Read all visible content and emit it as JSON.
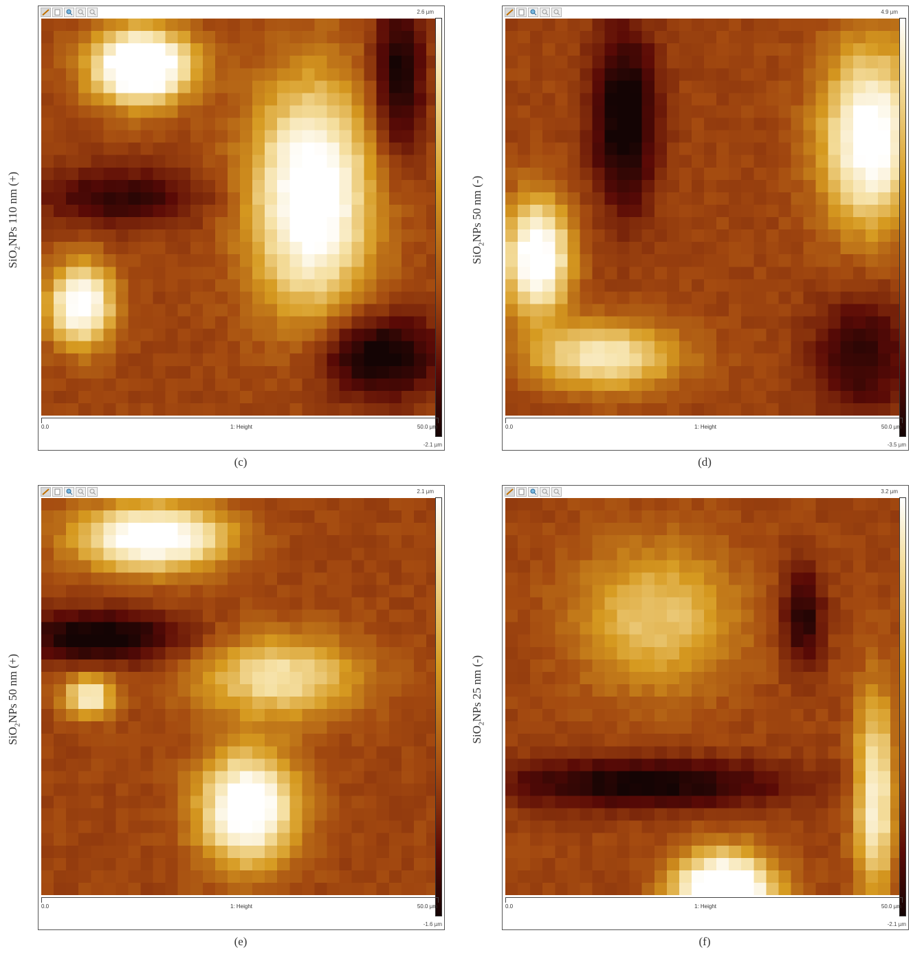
{
  "panels": [
    {
      "side_label": {
        "prefix": "SiO",
        "sub": "2",
        "suffix": "NPs 110 nm (+)"
      },
      "caption": "(c)",
      "max_label": "2.6 µm",
      "min_label": "-2.1 µm",
      "axis": {
        "start": "0.0",
        "channel": "1: Height",
        "end": "50.0 µm"
      }
    },
    {
      "side_label": {
        "prefix": "SiO",
        "sub": "2",
        "suffix": "NPs 50 nm (-)"
      },
      "caption": "(d)",
      "max_label": "4.9 µm",
      "min_label": "-3.5 µm",
      "axis": {
        "start": "0.0",
        "channel": "1: Height",
        "end": "50.0 µm"
      }
    },
    {
      "side_label": {
        "prefix": "SiO",
        "sub": "2",
        "suffix": "NPs 50 nm (+)"
      },
      "caption": "(e)",
      "max_label": "2.1 µm",
      "min_label": "-1.6 µm",
      "axis": {
        "start": "0.0",
        "channel": "1: Height",
        "end": "50.0 µm"
      }
    },
    {
      "side_label": {
        "prefix": "SiO",
        "sub": "2",
        "suffix": "NPs 25 nm (-)"
      },
      "caption": "(f)",
      "max_label": "3.2 µm",
      "min_label": "-2.1 µm",
      "axis": {
        "start": "0.0",
        "channel": "1: Height",
        "end": "50.0 µm"
      }
    }
  ],
  "toolbar_icons": [
    "pencil-icon",
    "page-icon",
    "zoom-in-icon",
    "zoom-out-icon",
    "zoom-reset-icon"
  ],
  "colors": {
    "colormap": [
      "#140404",
      "#5a0a06",
      "#a44a10",
      "#d69a20",
      "#f5dfa0",
      "#ffffff"
    ]
  }
}
